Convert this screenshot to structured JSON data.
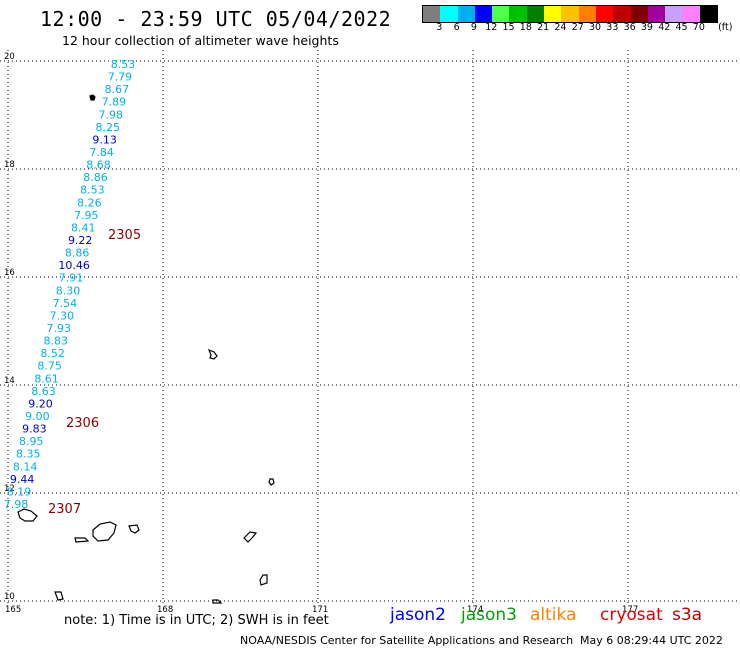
{
  "header": {
    "title": "12:00 - 23:59 UTC 05/04/2022",
    "subtitle": "12 hour collection of altimeter wave heights"
  },
  "color_scale": {
    "unit": "(ft)",
    "labels": [
      "3",
      "6",
      "9",
      "12",
      "15",
      "18",
      "21",
      "24",
      "27",
      "30",
      "33",
      "36",
      "39",
      "42",
      "45",
      "70"
    ],
    "colors": [
      "#7f7f7f",
      "#00ffff",
      "#00b0ee",
      "#0000ff",
      "#50ff50",
      "#00c000",
      "#007f00",
      "#ffff00",
      "#ffc000",
      "#ff8000",
      "#ff0000",
      "#c00000",
      "#800000",
      "#a000a0",
      "#c8a0ff",
      "#ff80ff",
      "#000000"
    ]
  },
  "axes": {
    "x_ticks": [
      "165",
      "168",
      "171",
      "174",
      "177"
    ],
    "y_ticks": [
      "20",
      "18",
      "16",
      "14",
      "12",
      "10"
    ]
  },
  "measurements": [
    {
      "v": "8.53",
      "c": "#00b0ee"
    },
    {
      "v": "7.79",
      "c": "#00b0ee"
    },
    {
      "v": "8.67",
      "c": "#00b0ee"
    },
    {
      "v": "7.89",
      "c": "#00b0ee"
    },
    {
      "v": "7.98",
      "c": "#00b0ee"
    },
    {
      "v": "8.25",
      "c": "#00b0ee"
    },
    {
      "v": "9.13",
      "c": "#0000c8"
    },
    {
      "v": "7.84",
      "c": "#00b0ee"
    },
    {
      "v": "8.68",
      "c": "#00b0ee"
    },
    {
      "v": "8.86",
      "c": "#00b0ee"
    },
    {
      "v": "8.53",
      "c": "#00b0ee"
    },
    {
      "v": "8.26",
      "c": "#00b0ee"
    },
    {
      "v": "7.95",
      "c": "#00b0ee"
    },
    {
      "v": "8.41",
      "c": "#00b0ee"
    },
    {
      "v": "9.22",
      "c": "#0000c8"
    },
    {
      "v": "8.86",
      "c": "#00b0ee"
    },
    {
      "v": "10.46",
      "c": "#0000c8"
    },
    {
      "v": "7.91",
      "c": "#00b0ee"
    },
    {
      "v": "8.30",
      "c": "#00b0ee"
    },
    {
      "v": "7.54",
      "c": "#00b0ee"
    },
    {
      "v": "7.30",
      "c": "#00b0ee"
    },
    {
      "v": "7.93",
      "c": "#00b0ee"
    },
    {
      "v": "8.83",
      "c": "#00b0ee"
    },
    {
      "v": "8.52",
      "c": "#00b0ee"
    },
    {
      "v": "8.75",
      "c": "#00b0ee"
    },
    {
      "v": "8.61",
      "c": "#00b0ee"
    },
    {
      "v": "8.63",
      "c": "#00b0ee"
    },
    {
      "v": "9.20",
      "c": "#0000c8"
    },
    {
      "v": "9.00",
      "c": "#00b0ee"
    },
    {
      "v": "9.83",
      "c": "#0000c8"
    },
    {
      "v": "8.95",
      "c": "#00b0ee"
    },
    {
      "v": "8.35",
      "c": "#00b0ee"
    },
    {
      "v": "8.14",
      "c": "#00b0ee"
    },
    {
      "v": "9.44",
      "c": "#0000c8"
    },
    {
      "v": "8.19",
      "c": "#00b0ee"
    },
    {
      "v": "7.98",
      "c": "#00b0ee"
    }
  ],
  "times": [
    "2305",
    "2306",
    "2307"
  ],
  "footer": {
    "note": "note:  1) Time is in UTC; 2) SWH is in feet",
    "satellites": [
      {
        "name": "jason2",
        "color": "#0000ff"
      },
      {
        "name": "jason3",
        "color": "#00a000"
      },
      {
        "name": "altika",
        "color": "#ff8000"
      },
      {
        "name": "cryosat",
        "color": "#e00000"
      },
      {
        "name": "s3a",
        "color": "#c00000"
      }
    ],
    "credit": "NOAA/NESDIS Center for Satellite Applications and Research",
    "timestamp": "May  6 08:29:44 UTC 2022"
  }
}
